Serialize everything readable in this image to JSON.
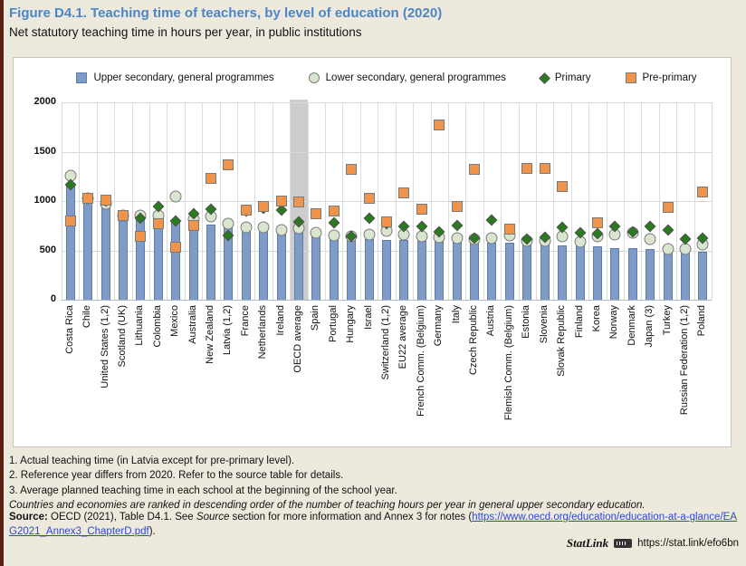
{
  "page": {
    "title": "Figure D4.1. Teaching time of teachers, by level of education (2020)",
    "subtitle": "Net statutory teaching time in hours per year, in public institutions"
  },
  "chart_data": {
    "type": "bar",
    "title": "Teaching time of teachers, by level of education (2020)",
    "ylabel": "Hours per year",
    "ylim": [
      0,
      2000
    ],
    "yticks": [
      0,
      500,
      1000,
      1500,
      2000
    ],
    "grid": true,
    "legend_position": "top",
    "highlight_category": "OECD average",
    "highlight_color": "#CCCCCC",
    "categories": [
      "Costa Rica",
      "Chile",
      "United States (1,2)",
      "Scotland (UK)",
      "Lithuania",
      "Colombia",
      "Mexico",
      "Australia",
      "New Zealand",
      "Latvia (1,2)",
      "France",
      "Netherlands",
      "Ireland",
      "OECD average",
      "Spain",
      "Portugal",
      "Hungary",
      "Israel",
      "Switzerland (1,2)",
      "EU22 average",
      "French Comm. (Belgium)",
      "Germany",
      "Italy",
      "Czech Republic",
      "Austria",
      "Flemish Comm. (Belgium)",
      "Estonia",
      "Slovenia",
      "Slovak Republic",
      "Finland",
      "Korea",
      "Norway",
      "Denmark",
      "Japan (3)",
      "Turkey",
      "Russian Federation (1,2)",
      "Poland"
    ],
    "series": [
      {
        "name": "Upper secondary, general programmes",
        "marker": "bar",
        "color": "#7E9CC7",
        "values": [
          1180,
          1025,
          966,
          855,
          815,
          810,
          805,
          800,
          760,
          750,
          720,
          720,
          700,
          685,
          665,
          640,
          620,
          615,
          610,
          605,
          600,
          598,
          590,
          585,
          580,
          575,
          565,
          560,
          555,
          550,
          540,
          525,
          520,
          510,
          505,
          490,
          485
        ]
      },
      {
        "name": "Lower secondary, general programmes",
        "marker": "circle",
        "color": "#D9E5CE",
        "values": [
          1260,
          1025,
          970,
          855,
          855,
          850,
          1047,
          820,
          840,
          775,
          730,
          735,
          710,
          723,
          675,
          650,
          640,
          665,
          700,
          660,
          645,
          630,
          620,
          615,
          625,
          650,
          595,
          600,
          640,
          590,
          640,
          660,
          680,
          615,
          510,
          515,
          560
        ]
      },
      {
        "name": "Primary",
        "marker": "diamond",
        "color": "#2B7A1F",
        "values": [
          1170,
          1025,
          1000,
          855,
          830,
          950,
          800,
          870,
          920,
          650,
          900,
          930,
          910,
          791,
          870,
          780,
          645,
          830,
          775,
          745,
          740,
          690,
          755,
          620,
          810,
          720,
          615,
          630,
          730,
          675,
          670,
          740,
          690,
          745,
          705,
          615,
          620
        ]
      },
      {
        "name": "Pre-primary",
        "marker": "square",
        "color": "#F0944B",
        "values": [
          800,
          1025,
          1010,
          855,
          640,
          775,
          535,
          755,
          1230,
          1365,
          910,
          950,
          1000,
          987,
          875,
          895,
          1320,
          1025,
          790,
          1080,
          920,
          1770,
          945,
          1320,
          null,
          715,
          1330,
          1330,
          1150,
          null,
          780,
          null,
          null,
          null,
          935,
          null,
          1090
        ]
      }
    ]
  },
  "footnotes": [
    "1. Actual teaching time (in Latvia except for pre-primary level).",
    "2. Reference year differs from 2020. Refer to the source table for details.",
    "3. Average planned teaching time in each school at the beginning of the school year.",
    "Countries and economies are ranked in descending order of the number of teaching hours per year in general upper secondary education."
  ],
  "source": {
    "label": "Source:",
    "t1": " OECD (2021), Table D4.1. See ",
    "t2": "Source",
    "t3": " section for more information and Annex 3 for notes (",
    "link": "https://www.oecd.org/education/education-at-a-glance/EAG2021_Annex3_ChapterD.pdf",
    "t4": ")."
  },
  "statlink": {
    "label": "StatLink",
    "url": "https://stat.link/efo6bn"
  }
}
